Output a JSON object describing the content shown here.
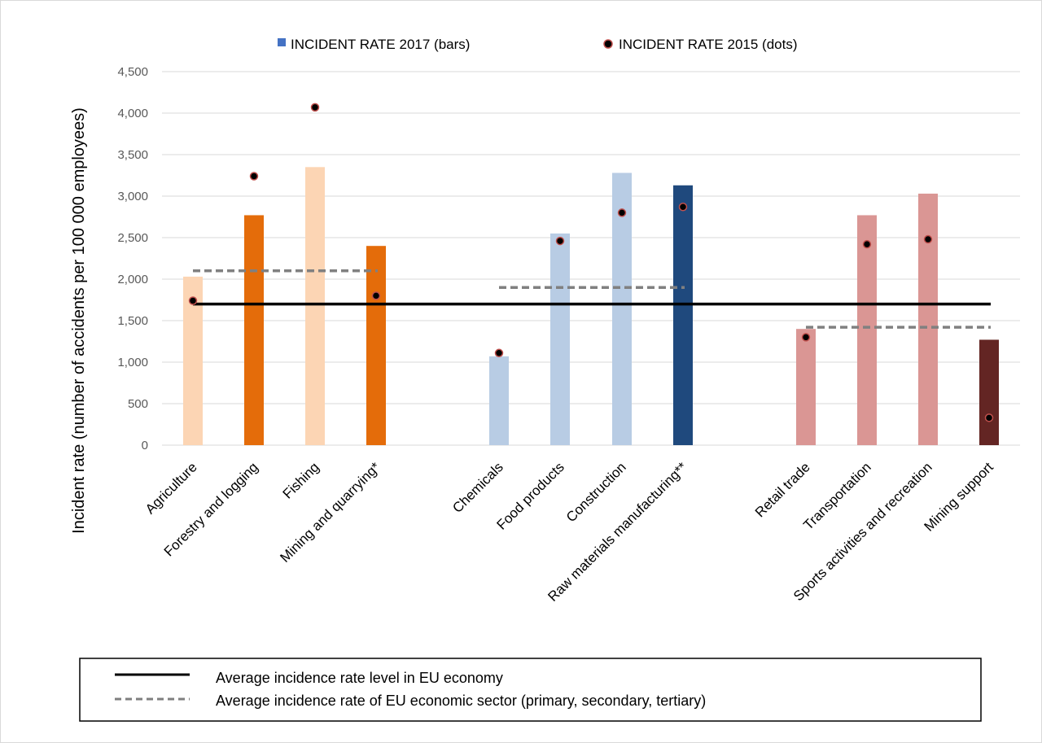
{
  "chart_data": {
    "type": "bar",
    "ylabel": "Incident rate (number of accidents per 100 000 employees)",
    "ylim": [
      0,
      4500
    ],
    "yticks": [
      0,
      500,
      1000,
      1500,
      2000,
      2500,
      3000,
      3500,
      4000,
      4500
    ],
    "ytick_labels": [
      "0",
      "500",
      "1,000",
      "1,500",
      "2,000",
      "2,500",
      "3,000",
      "3,500",
      "4,000",
      "4,500"
    ],
    "grid": "horizontal",
    "legend_top": {
      "bars_label": "INCIDENT RATE 2017 (bars)",
      "dots_label": "INCIDENT RATE 2015 (dots)",
      "bars_color": "#4472c4",
      "dots_fill": "#000000",
      "dots_edge": "#c0504d"
    },
    "categories": [
      {
        "label": "Agriculture",
        "value_2017": 2030,
        "value_2015": 1740,
        "color": "#fcd5b4",
        "group": 0
      },
      {
        "label": "Forestry and logging",
        "value_2017": 2770,
        "value_2015": 3240,
        "color": "#e46c0a",
        "group": 0
      },
      {
        "label": "Fishing",
        "value_2017": 3350,
        "value_2015": 4070,
        "color": "#fcd5b4",
        "group": 0
      },
      {
        "label": "Mining and quarrying*",
        "value_2017": 2400,
        "value_2015": 1800,
        "color": "#e46c0a",
        "group": 0
      },
      {
        "label": "Chemicals",
        "value_2017": 1070,
        "value_2015": 1110,
        "color": "#b8cce4",
        "group": 1
      },
      {
        "label": "Food products",
        "value_2017": 2550,
        "value_2015": 2460,
        "color": "#b8cce4",
        "group": 1
      },
      {
        "label": "Construction",
        "value_2017": 3280,
        "value_2015": 2800,
        "color": "#b8cce4",
        "group": 1
      },
      {
        "label": "Raw materials manufacturing**",
        "value_2017": 3130,
        "value_2015": 2870,
        "color": "#1f497d",
        "group": 1
      },
      {
        "label": "Retail trade",
        "value_2017": 1400,
        "value_2015": 1300,
        "color": "#da9694",
        "group": 2
      },
      {
        "label": "Transportation",
        "value_2017": 2770,
        "value_2015": 2420,
        "color": "#da9694",
        "group": 2
      },
      {
        "label": "Sports activities and recreation",
        "value_2017": 3030,
        "value_2015": 2480,
        "color": "#da9694",
        "group": 2
      },
      {
        "label": "Mining support",
        "value_2017": 1270,
        "value_2015": 330,
        "color": "#632523",
        "group": 2
      }
    ],
    "eu_average": 1700,
    "sector_averages": [
      {
        "sector": "primary",
        "value": 2100,
        "from_category": 0,
        "to_category": 3
      },
      {
        "sector": "secondary",
        "value": 1900,
        "from_category": 4,
        "to_category": 7
      },
      {
        "sector": "tertiary",
        "value": 1420,
        "from_category": 8,
        "to_category": 11
      }
    ],
    "legend_bottom": {
      "solid_label": "Average incidence rate level in EU economy",
      "dashed_label": "Average incidence rate of EU economic sector (primary, secondary, tertiary)"
    }
  }
}
